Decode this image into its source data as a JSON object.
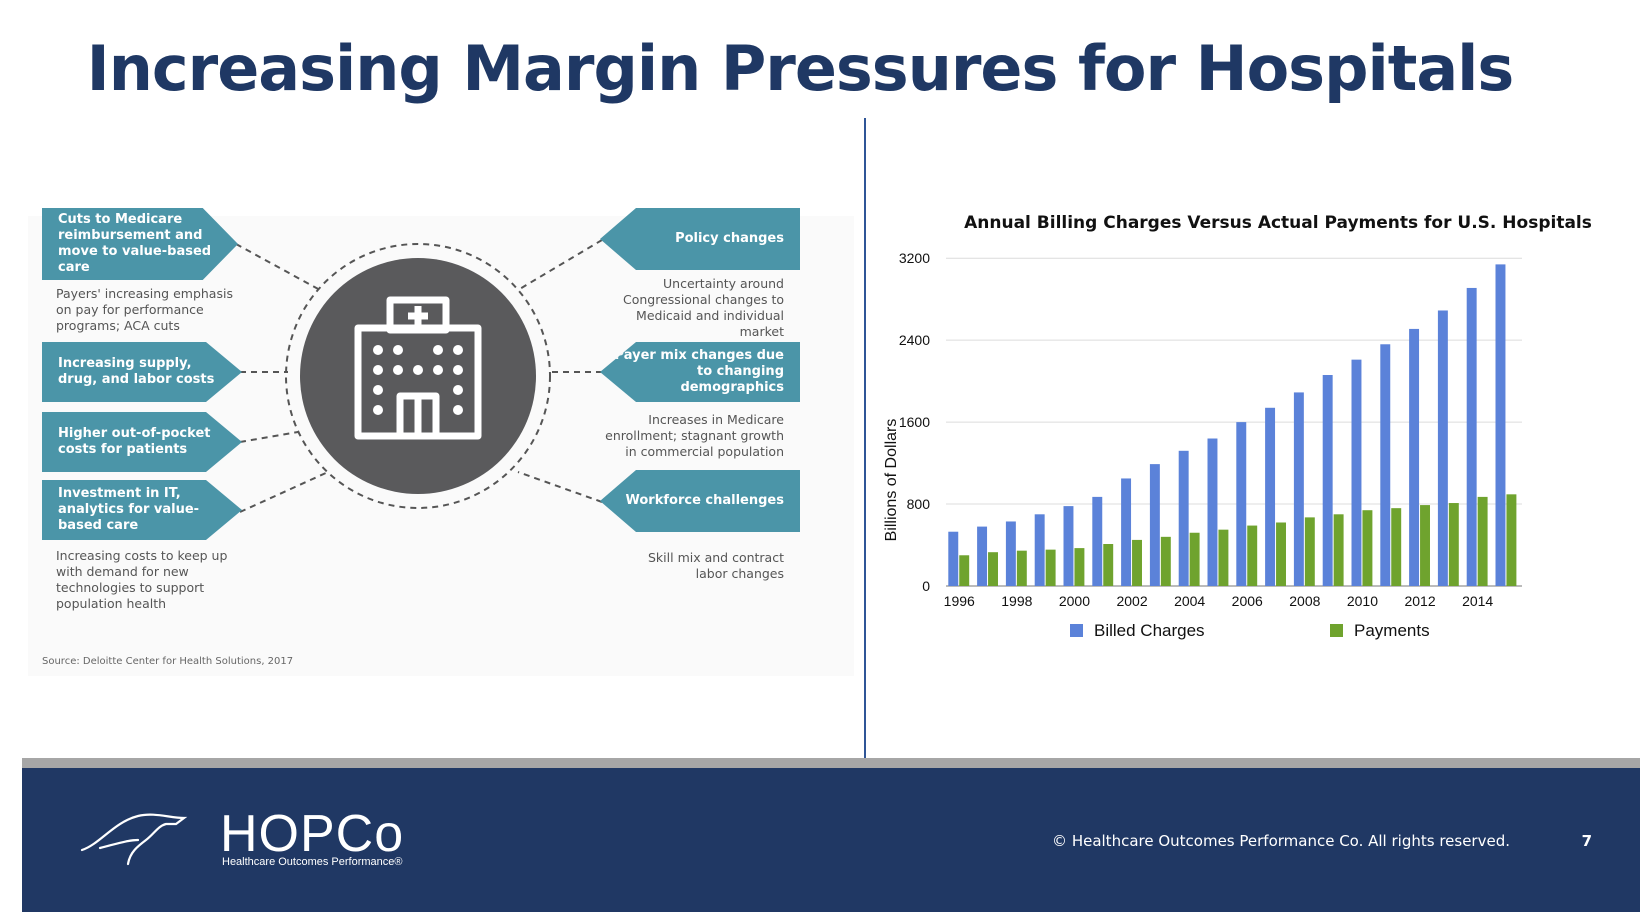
{
  "slide": {
    "title": "Increasing Margin Pressures for Hospitals",
    "page_number": "7"
  },
  "infographic": {
    "left_items": [
      {
        "label": "Cuts to Medicare reimbursement and move to value-based care",
        "desc": "Payers' increasing emphasis on pay for performance programs; ACA cuts"
      },
      {
        "label": "Increasing supply, drug, and labor costs",
        "desc": ""
      },
      {
        "label": "Higher out-of-pocket costs for patients",
        "desc": ""
      },
      {
        "label": "Investment in IT, analytics for value-based care",
        "desc": "Increasing costs to keep up with demand for new technologies to support population health"
      }
    ],
    "right_items": [
      {
        "label": "Policy changes",
        "desc": "Uncertainty around Congressional changes to Medicaid and individual market"
      },
      {
        "label": "Payer mix changes due to changing demographics",
        "desc": "Increases in Medicare enrollment; stagnant growth in commercial population"
      },
      {
        "label": "Workforce challenges",
        "desc": "Skill mix and contract labor changes"
      }
    ],
    "source": "Source: Deloitte Center for Health Solutions, 2017",
    "center_icon": "hospital-icon",
    "colors": {
      "box": "#4b95a8",
      "circle": "#5a5a5c"
    }
  },
  "chart_data": {
    "type": "bar",
    "title": "Annual Billing Charges Versus Actual Payments for U.S. Hospitals",
    "xlabel": "",
    "ylabel": "Billions of Dollars",
    "ylim": [
      0,
      3300
    ],
    "yticks": [
      0,
      800,
      1600,
      2400,
      3200
    ],
    "categories": [
      "1996",
      "1997",
      "1998",
      "1999",
      "2000",
      "2001",
      "2002",
      "2003",
      "2004",
      "2005",
      "2006",
      "2007",
      "2008",
      "2009",
      "2010",
      "2011",
      "2012",
      "2013",
      "2014",
      "2015"
    ],
    "xtick_labels": [
      "1996",
      "1998",
      "2000",
      "2002",
      "2004",
      "2006",
      "2008",
      "2010",
      "2012",
      "2014"
    ],
    "series": [
      {
        "name": "Billed Charges",
        "color": "#5b82d9",
        "values": [
          530,
          580,
          630,
          700,
          780,
          870,
          1050,
          1190,
          1320,
          1440,
          1600,
          1740,
          1890,
          2060,
          2210,
          2360,
          2510,
          2690,
          2910,
          3140
        ]
      },
      {
        "name": "Payments",
        "color": "#6fa32e",
        "values": [
          300,
          330,
          345,
          355,
          370,
          410,
          450,
          480,
          520,
          550,
          590,
          620,
          670,
          700,
          740,
          760,
          790,
          810,
          870,
          895
        ]
      }
    ],
    "legend": "bottom"
  },
  "footer": {
    "logo_text": "HOPCo",
    "logo_subtext": "Healthcare Outcomes Performance®",
    "copyright": "© Healthcare Outcomes Performance Co. All rights reserved."
  }
}
